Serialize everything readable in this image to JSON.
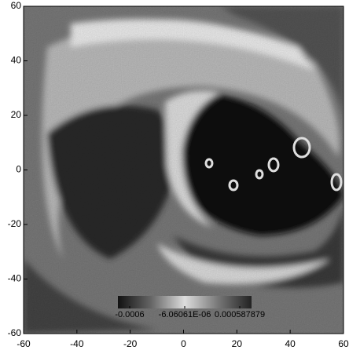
{
  "chart_data": {
    "type": "image",
    "xlim": [
      -60,
      60
    ],
    "xticks": [
      -60,
      -40,
      -20,
      0,
      20,
      40,
      60
    ],
    "ylim": [
      -60,
      60
    ],
    "yticks": [
      -60,
      -40,
      -20,
      0,
      20,
      40,
      60
    ],
    "colorbar": {
      "clim": [
        -0.0006,
        0.000587879
      ],
      "ticks": [
        -0.0006,
        {
          "value": -6.06061e-06,
          "label": "-6.06061E-06"
        },
        0.000587879
      ]
    }
  }
}
